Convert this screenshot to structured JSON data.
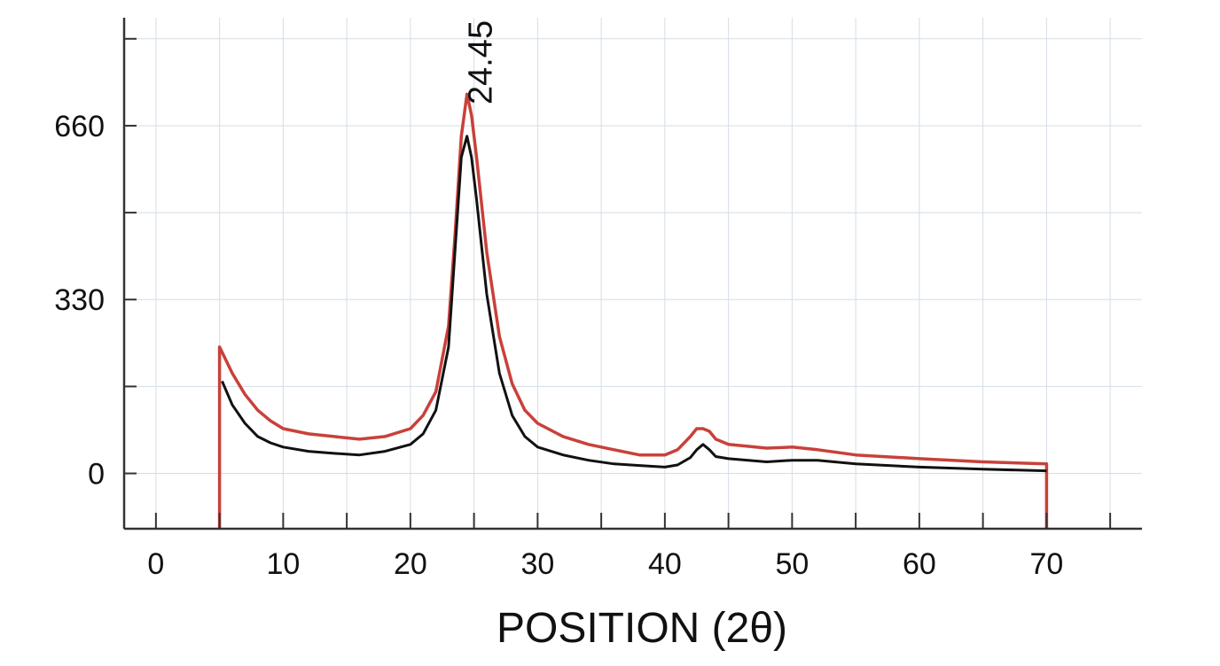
{
  "chart_data": {
    "type": "line",
    "title": "",
    "xlabel": "POSITION (2θ)",
    "ylabel": "",
    "xlim": [
      -2.5,
      77.5
    ],
    "ylim": [
      -105,
      865
    ],
    "x_ticks": [
      "0",
      "10",
      "20",
      "30",
      "40",
      "50",
      "60",
      "70"
    ],
    "y_ticks": [
      "0",
      "330",
      "660"
    ],
    "grid": true,
    "annotations": [
      {
        "text": "24.45",
        "x": 24.45
      }
    ],
    "series": [
      {
        "color": "#c8413a",
        "x": [
          5,
          5.2,
          6,
          7,
          8,
          9,
          10,
          12,
          14,
          16,
          18,
          20,
          21,
          22,
          23,
          23.5,
          24,
          24.45,
          24.8,
          25.2,
          26,
          27,
          28,
          29,
          30,
          32,
          34,
          36,
          38,
          40,
          41,
          42,
          42.5,
          43,
          43.5,
          44,
          45,
          48,
          50,
          52,
          55,
          60,
          65,
          70
        ],
        "y": [
          240,
          230,
          190,
          150,
          120,
          100,
          85,
          75,
          70,
          65,
          70,
          85,
          110,
          155,
          280,
          450,
          640,
          720,
          680,
          600,
          420,
          260,
          170,
          120,
          95,
          70,
          55,
          45,
          35,
          35,
          45,
          70,
          85,
          85,
          80,
          65,
          55,
          48,
          50,
          45,
          35,
          28,
          22,
          18
        ]
      },
      {
        "color": "#111111",
        "x": [
          5.2,
          6,
          7,
          8,
          9,
          10,
          12,
          14,
          16,
          18,
          20,
          21,
          22,
          23,
          23.5,
          24,
          24.45,
          24.8,
          25.2,
          26,
          27,
          28,
          29,
          30,
          32,
          34,
          36,
          38,
          40,
          41,
          42,
          42.5,
          43,
          43.5,
          44,
          45,
          48,
          50,
          52,
          55,
          60,
          65,
          70
        ],
        "y": [
          175,
          130,
          95,
          70,
          58,
          50,
          42,
          38,
          35,
          42,
          55,
          75,
          120,
          240,
          420,
          600,
          640,
          600,
          520,
          340,
          190,
          110,
          70,
          50,
          35,
          25,
          18,
          15,
          12,
          16,
          30,
          45,
          55,
          45,
          32,
          28,
          22,
          25,
          25,
          18,
          12,
          8,
          5
        ]
      }
    ]
  }
}
